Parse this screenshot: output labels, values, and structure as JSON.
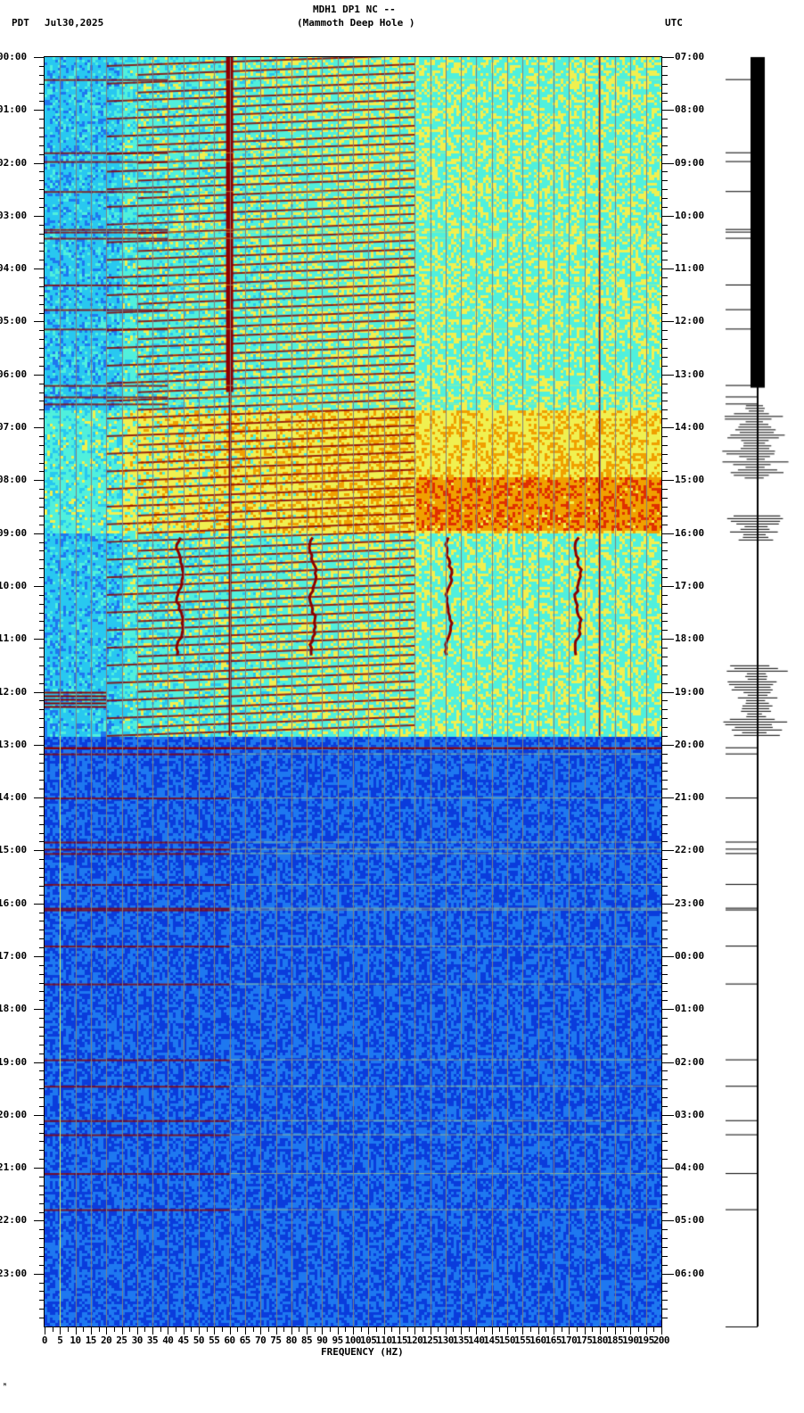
{
  "header": {
    "station": "MDH1 DP1 NC --",
    "location": "(Mammoth Deep Hole )",
    "left_tz": "PDT",
    "date": "Jul30,2025",
    "right_tz": "UTC"
  },
  "footer": {
    "xlabel": "FREQUENCY (HZ)",
    "corner_mark": "ᴹ"
  },
  "chart_data": {
    "type": "heatmap",
    "title": "MDH1 DP1 NC -- (Mammoth Deep Hole ) spectrogram",
    "subtitle": "Jul30,2025",
    "xlabel": "FREQUENCY (HZ)",
    "ylabel_left": "PDT",
    "ylabel_right": "UTC",
    "xlim": [
      0,
      200
    ],
    "x_ticks": [
      0,
      5,
      10,
      15,
      20,
      25,
      30,
      35,
      40,
      45,
      50,
      55,
      60,
      65,
      70,
      75,
      80,
      85,
      90,
      95,
      100,
      105,
      110,
      115,
      120,
      125,
      130,
      135,
      140,
      145,
      150,
      155,
      160,
      165,
      170,
      175,
      180,
      185,
      190,
      195,
      200
    ],
    "x_grid_step_hz": 5,
    "y_ticks_left_pdt": [
      "00:00",
      "01:00",
      "02:00",
      "03:00",
      "04:00",
      "05:00",
      "06:00",
      "07:00",
      "08:00",
      "09:00",
      "10:00",
      "11:00",
      "12:00",
      "13:00",
      "14:00",
      "15:00",
      "16:00",
      "17:00",
      "18:00",
      "19:00",
      "20:00",
      "21:00",
      "22:00",
      "23:00"
    ],
    "y_ticks_right_utc": [
      "07:00",
      "08:00",
      "09:00",
      "10:00",
      "11:00",
      "12:00",
      "13:00",
      "14:00",
      "15:00",
      "16:00",
      "17:00",
      "18:00",
      "19:00",
      "20:00",
      "21:00",
      "22:00",
      "23:00",
      "00:00",
      "01:00",
      "02:00",
      "03:00",
      "04:00",
      "05:00",
      "06:00"
    ],
    "minor_tick_minutes": 10,
    "data_end_pdt": "12:50",
    "colormap": [
      "#0a3cdc",
      "#1e78f0",
      "#28c8f0",
      "#50f0dc",
      "#f0f050",
      "#f0a000",
      "#e03000",
      "#8c0000"
    ],
    "features": [
      {
        "name": "60 Hz persistent line",
        "freq_hz": 60,
        "start_pdt": "00:00",
        "end_pdt": "06:20",
        "intensity": "max"
      },
      {
        "name": "60 Hz line (thin)",
        "freq_hz": 60,
        "start_pdt": "06:20",
        "end_pdt": "12:50",
        "intensity": "high"
      },
      {
        "name": "180 Hz line",
        "freq_hz": 180,
        "start_pdt": "00:00",
        "end_pdt": "12:50",
        "intensity": "high"
      },
      {
        "name": "rising harmonic streaks",
        "freq_range_hz": [
          20,
          120
        ],
        "start_pdt": "00:00",
        "end_pdt": "12:50",
        "period_min": 10
      },
      {
        "name": "broadband noise band",
        "freq_range_hz": [
          0,
          200
        ],
        "start_pdt": "06:40",
        "end_pdt": "09:00"
      },
      {
        "name": "wandering tonal",
        "freq_hz": 44,
        "start_pdt": "09:05",
        "end_pdt": "11:20"
      },
      {
        "name": "wandering tonal",
        "freq_hz": 87,
        "start_pdt": "09:05",
        "end_pdt": "11:20"
      },
      {
        "name": "wandering tonal",
        "freq_hz": 131,
        "start_pdt": "09:05",
        "end_pdt": "11:20"
      },
      {
        "name": "wandering tonal",
        "freq_hz": 173,
        "start_pdt": "09:05",
        "end_pdt": "11:20"
      },
      {
        "name": "low-freq burst",
        "freq_range_hz": [
          0,
          20
        ],
        "start_pdt": "12:00",
        "end_pdt": "12:20"
      },
      {
        "name": "quiet period (low level)",
        "freq_range_hz": [
          0,
          200
        ],
        "start_pdt": "12:50",
        "end_pdt": "24:00"
      }
    ],
    "horizontal_event_lines_pdt": [
      "00:25",
      "01:48",
      "01:58",
      "02:32",
      "03:15",
      "03:18",
      "03:25",
      "04:18",
      "04:46",
      "05:08",
      "06:12",
      "06:25",
      "06:33",
      "13:03",
      "13:10",
      "14:00",
      "14:50",
      "14:58",
      "15:03",
      "15:38",
      "16:05",
      "16:07",
      "16:48",
      "17:31",
      "18:57",
      "19:27",
      "20:06",
      "20:22",
      "21:06",
      "21:47"
    ],
    "trace": {
      "label": "seismogram",
      "saturated_until_pdt": "06:15",
      "large_amp_windows_pdt": [
        [
          "06:35",
          "08:00"
        ],
        [
          "08:40",
          "09:10"
        ],
        [
          "11:30",
          "12:50"
        ]
      ]
    }
  }
}
